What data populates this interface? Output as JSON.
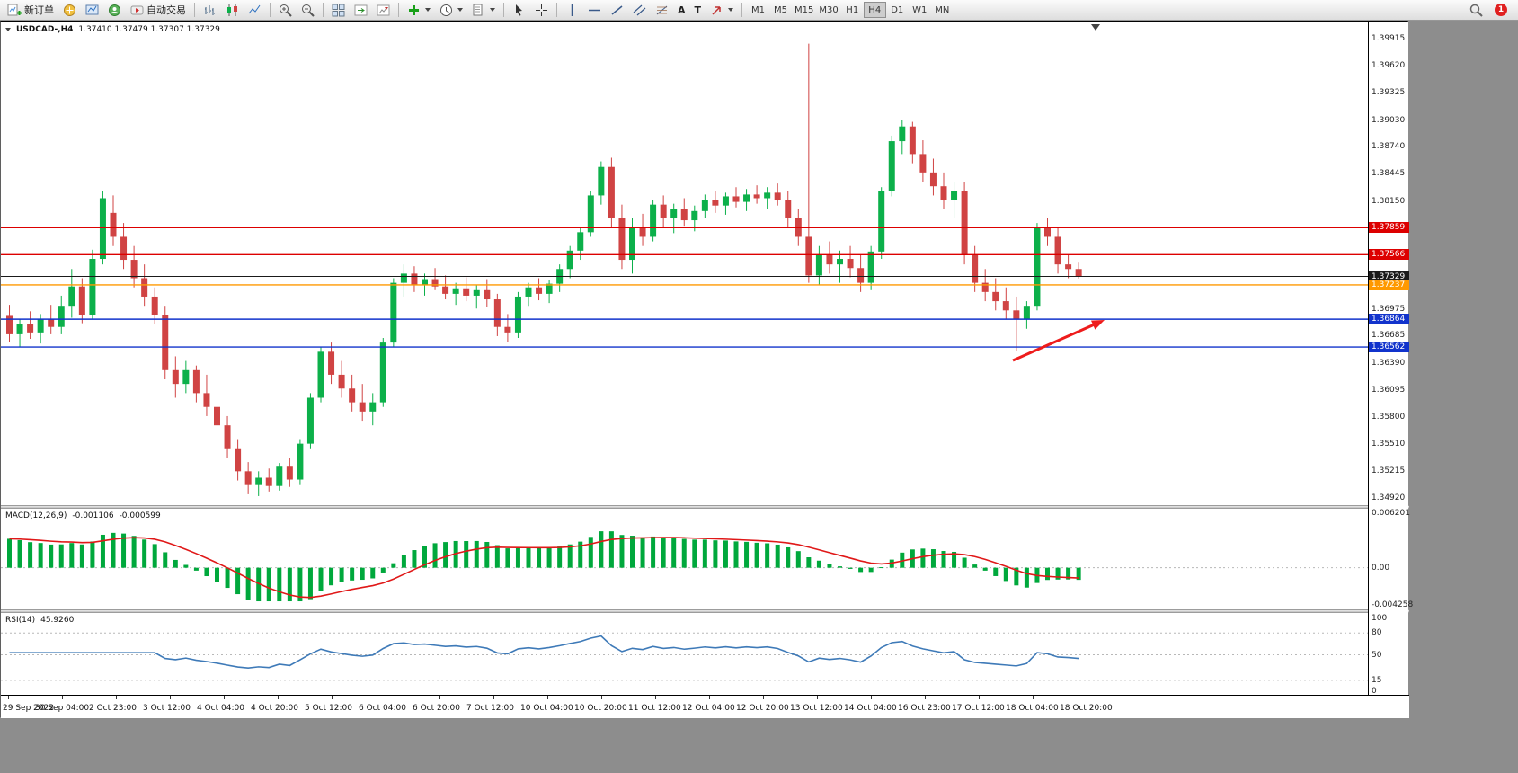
{
  "toolbar": {
    "new_order": "新订单",
    "auto_trading": "自动交易",
    "text_tool": "A",
    "label_tool": "T",
    "timeframes": [
      "M1",
      "M5",
      "M15",
      "M30",
      "H1",
      "H4",
      "D1",
      "W1",
      "MN"
    ],
    "active_timeframe": "H4",
    "notification_count": "1"
  },
  "chart_window": {
    "symbol_period": "USDCAD-,H4",
    "ohlc_text": "1.37410 1.37479 1.37307 1.37329"
  },
  "chart_data": {
    "type": "candlestick",
    "title": "USDCAD- H4",
    "current_bar": {
      "open": 1.3741,
      "high": 1.37479,
      "low": 1.37307,
      "close": 1.37329
    },
    "y_axis": {
      "min": 1.3492,
      "max": 1.39915,
      "plain_ticks": [
        "1.39915",
        "1.39620",
        "1.39325",
        "1.39030",
        "1.38740",
        "1.38445",
        "1.38150",
        "1.36975",
        "1.36685",
        "1.36390",
        "1.36095",
        "1.35800",
        "1.35510",
        "1.35215",
        "1.34920"
      ]
    },
    "x_labels": [
      "29 Sep 2022",
      "30 Sep 04:00",
      "2 Oct 23:00",
      "3 Oct 12:00",
      "4 Oct 04:00",
      "4 Oct 20:00",
      "5 Oct 12:00",
      "6 Oct 04:00",
      "6 Oct 20:00",
      "7 Oct 12:00",
      "10 Oct 04:00",
      "10 Oct 20:00",
      "11 Oct 12:00",
      "12 Oct 04:00",
      "12 Oct 20:00",
      "13 Oct 12:00",
      "14 Oct 04:00",
      "16 Oct 23:00",
      "17 Oct 12:00",
      "18 Oct 04:00",
      "18 Oct 20:00"
    ],
    "colors": {
      "up": "#0cb04a",
      "down": "#d04343",
      "macd_histogram": "#00a83c",
      "macd_signal": "#e01818",
      "rsi_line": "#3e7ab8",
      "arrow": "#ee1c1c",
      "resistance": "#dd0000",
      "support": "#1133cc",
      "level": "#ff9900",
      "current_price": "#1a1a1a"
    },
    "hlines": [
      {
        "price": 1.37859,
        "label": "1.37859",
        "color": "#dd0000",
        "type": "resistance"
      },
      {
        "price": 1.37566,
        "label": "1.37566",
        "color": "#dd0000",
        "type": "resistance"
      },
      {
        "price": 1.37329,
        "label": "1.37329",
        "color": "#1a1a1a",
        "type": "current-price"
      },
      {
        "price": 1.37237,
        "label": "1.37237",
        "color": "#ff9900",
        "type": "level"
      },
      {
        "price": 1.36864,
        "label": "1.36864",
        "color": "#1133cc",
        "type": "support"
      },
      {
        "price": 1.36562,
        "label": "1.36562",
        "color": "#1133cc",
        "type": "support"
      }
    ],
    "candles": [
      [
        1.369,
        1.3702,
        1.3662,
        1.367
      ],
      [
        1.367,
        1.3686,
        1.3656,
        1.3681
      ],
      [
        1.3681,
        1.3695,
        1.3665,
        1.3672
      ],
      [
        1.3672,
        1.3692,
        1.366,
        1.3686
      ],
      [
        1.3686,
        1.3702,
        1.367,
        1.3678
      ],
      [
        1.3678,
        1.3712,
        1.367,
        1.3701
      ],
      [
        1.3701,
        1.3741,
        1.3688,
        1.3722
      ],
      [
        1.3722,
        1.3731,
        1.3682,
        1.3691
      ],
      [
        1.3691,
        1.3762,
        1.3686,
        1.3752
      ],
      [
        1.3752,
        1.3826,
        1.3746,
        1.3818
      ],
      [
        1.3802,
        1.3821,
        1.3766,
        1.3776
      ],
      [
        1.3776,
        1.3791,
        1.3741,
        1.3751
      ],
      [
        1.3751,
        1.3766,
        1.3721,
        1.3731
      ],
      [
        1.3731,
        1.3746,
        1.3701,
        1.3711
      ],
      [
        1.3711,
        1.3721,
        1.3681,
        1.3691
      ],
      [
        1.3691,
        1.3701,
        1.3621,
        1.3631
      ],
      [
        1.3631,
        1.3646,
        1.3601,
        1.3616
      ],
      [
        1.3616,
        1.3641,
        1.3606,
        1.3631
      ],
      [
        1.3631,
        1.3636,
        1.3596,
        1.3606
      ],
      [
        1.3606,
        1.3626,
        1.3581,
        1.3591
      ],
      [
        1.3591,
        1.3611,
        1.3561,
        1.3571
      ],
      [
        1.3571,
        1.3581,
        1.3536,
        1.3546
      ],
      [
        1.3546,
        1.3556,
        1.3511,
        1.3521
      ],
      [
        1.3521,
        1.3531,
        1.3496,
        1.3506
      ],
      [
        1.3506,
        1.3521,
        1.3494,
        1.3514
      ],
      [
        1.3514,
        1.3524,
        1.3499,
        1.3505
      ],
      [
        1.3505,
        1.353,
        1.35,
        1.3526
      ],
      [
        1.3526,
        1.3536,
        1.3504,
        1.3512
      ],
      [
        1.3512,
        1.3556,
        1.3506,
        1.3551
      ],
      [
        1.3551,
        1.3606,
        1.3546,
        1.3601
      ],
      [
        1.3601,
        1.3656,
        1.3596,
        1.3651
      ],
      [
        1.3651,
        1.3661,
        1.3616,
        1.3626
      ],
      [
        1.3626,
        1.3641,
        1.3601,
        1.3611
      ],
      [
        1.3611,
        1.3626,
        1.3586,
        1.3596
      ],
      [
        1.3596,
        1.3616,
        1.3576,
        1.3586
      ],
      [
        1.3586,
        1.3606,
        1.3571,
        1.3596
      ],
      [
        1.3596,
        1.3666,
        1.3591,
        1.3661
      ],
      [
        1.3661,
        1.3731,
        1.3656,
        1.3726
      ],
      [
        1.3726,
        1.3746,
        1.3711,
        1.3736
      ],
      [
        1.3736,
        1.3744,
        1.3716,
        1.3724
      ],
      [
        1.3724,
        1.3736,
        1.3712,
        1.373
      ],
      [
        1.373,
        1.3742,
        1.3718,
        1.3722
      ],
      [
        1.3722,
        1.3734,
        1.3708,
        1.3714
      ],
      [
        1.3714,
        1.3726,
        1.3702,
        1.372
      ],
      [
        1.372,
        1.3732,
        1.3706,
        1.3712
      ],
      [
        1.3712,
        1.3724,
        1.3698,
        1.3718
      ],
      [
        1.3718,
        1.373,
        1.37,
        1.3708
      ],
      [
        1.3708,
        1.3714,
        1.3668,
        1.3678
      ],
      [
        1.3678,
        1.3692,
        1.3662,
        1.3672
      ],
      [
        1.3672,
        1.3716,
        1.3666,
        1.3711
      ],
      [
        1.3711,
        1.3726,
        1.3701,
        1.3721
      ],
      [
        1.3721,
        1.3731,
        1.3707,
        1.3714
      ],
      [
        1.3714,
        1.3729,
        1.3704,
        1.3725
      ],
      [
        1.3725,
        1.3746,
        1.3716,
        1.3741
      ],
      [
        1.3741,
        1.3766,
        1.3731,
        1.3761
      ],
      [
        1.3761,
        1.3786,
        1.3751,
        1.3781
      ],
      [
        1.3781,
        1.3826,
        1.3776,
        1.3821
      ],
      [
        1.3821,
        1.3858,
        1.3811,
        1.3852
      ],
      [
        1.3852,
        1.3862,
        1.3786,
        1.3796
      ],
      [
        1.3796,
        1.3811,
        1.3741,
        1.3751
      ],
      [
        1.3751,
        1.3796,
        1.3736,
        1.3786
      ],
      [
        1.3786,
        1.3801,
        1.3766,
        1.3776
      ],
      [
        1.3776,
        1.3816,
        1.3771,
        1.3811
      ],
      [
        1.3811,
        1.3821,
        1.3786,
        1.3796
      ],
      [
        1.3796,
        1.3812,
        1.378,
        1.3806
      ],
      [
        1.3806,
        1.3818,
        1.3788,
        1.3794
      ],
      [
        1.3794,
        1.381,
        1.3782,
        1.3804
      ],
      [
        1.3804,
        1.3822,
        1.3796,
        1.3816
      ],
      [
        1.3816,
        1.3826,
        1.3802,
        1.381
      ],
      [
        1.381,
        1.3824,
        1.38,
        1.382
      ],
      [
        1.382,
        1.383,
        1.3808,
        1.3814
      ],
      [
        1.3814,
        1.3828,
        1.3804,
        1.3822
      ],
      [
        1.3822,
        1.3832,
        1.3812,
        1.3818
      ],
      [
        1.3818,
        1.383,
        1.3806,
        1.3824
      ],
      [
        1.3824,
        1.3834,
        1.381,
        1.3816
      ],
      [
        1.3816,
        1.3826,
        1.3786,
        1.3796
      ],
      [
        1.3796,
        1.3806,
        1.3766,
        1.3776
      ],
      [
        1.3776,
        1.3986,
        1.3726,
        1.3734
      ],
      [
        1.3734,
        1.3766,
        1.3724,
        1.3756
      ],
      [
        1.3756,
        1.3771,
        1.3736,
        1.3746
      ],
      [
        1.3746,
        1.3761,
        1.3726,
        1.3752
      ],
      [
        1.3752,
        1.3766,
        1.3732,
        1.3742
      ],
      [
        1.3742,
        1.3756,
        1.3716,
        1.3726
      ],
      [
        1.3726,
        1.3766,
        1.3718,
        1.376
      ],
      [
        1.376,
        1.383,
        1.3752,
        1.3826
      ],
      [
        1.3826,
        1.3886,
        1.382,
        1.388
      ],
      [
        1.388,
        1.3903,
        1.3866,
        1.3896
      ],
      [
        1.3896,
        1.3901,
        1.3856,
        1.3866
      ],
      [
        1.3866,
        1.3881,
        1.3836,
        1.3846
      ],
      [
        1.3846,
        1.3861,
        1.3821,
        1.3831
      ],
      [
        1.3831,
        1.3846,
        1.3806,
        1.3816
      ],
      [
        1.3816,
        1.3836,
        1.3796,
        1.3826
      ],
      [
        1.3826,
        1.3836,
        1.3746,
        1.3756
      ],
      [
        1.3756,
        1.3766,
        1.3716,
        1.3726
      ],
      [
        1.3726,
        1.3741,
        1.3706,
        1.3716
      ],
      [
        1.3716,
        1.3731,
        1.3696,
        1.3706
      ],
      [
        1.3706,
        1.3721,
        1.3686,
        1.3696
      ],
      [
        1.3696,
        1.3711,
        1.3652,
        1.3686
      ],
      [
        1.3686,
        1.3706,
        1.3676,
        1.3701
      ],
      [
        1.3701,
        1.3791,
        1.3696,
        1.3786
      ],
      [
        1.3786,
        1.3796,
        1.3766,
        1.3776
      ],
      [
        1.3776,
        1.3786,
        1.3736,
        1.3746
      ],
      [
        1.3746,
        1.3756,
        1.3731,
        1.3741
      ],
      [
        1.3741,
        1.37479,
        1.37307,
        1.37329
      ]
    ],
    "macd": {
      "name": "MACD(12,26,9)",
      "main_value": "-0.001106",
      "signal_value": "-0.000599",
      "fast": 12,
      "slow": 26,
      "signal": 9,
      "axis_ticks": [
        "0.006201",
        "0.00",
        "-0.004258"
      ]
    },
    "rsi": {
      "name": "RSI(14)",
      "value": "45.9260",
      "period": 14,
      "axis_ticks": [
        "100",
        "80",
        "50",
        "15",
        "0"
      ],
      "levels": [
        80,
        50,
        15
      ]
    }
  }
}
